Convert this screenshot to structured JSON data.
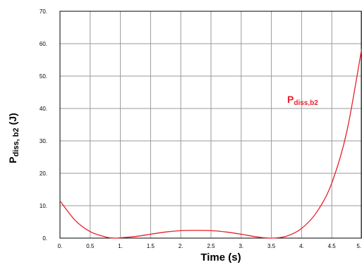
{
  "chart_data": {
    "type": "line",
    "title": "",
    "xlabel": "Time (s)",
    "ylabel": {
      "main": "P",
      "sub": "diss, b2",
      "unit": "(J)"
    },
    "xlim": [
      0,
      5
    ],
    "ylim": [
      0,
      70
    ],
    "x_ticks": [
      {
        "value": 0,
        "label": "0."
      },
      {
        "value": 0.5,
        "label": "0.5"
      },
      {
        "value": 1,
        "label": "1."
      },
      {
        "value": 1.5,
        "label": "1.5"
      },
      {
        "value": 2,
        "label": "2."
      },
      {
        "value": 2.5,
        "label": "2.5"
      },
      {
        "value": 3,
        "label": "3."
      },
      {
        "value": 3.5,
        "label": "3.5"
      },
      {
        "value": 4,
        "label": "4."
      },
      {
        "value": 4.5,
        "label": "4.5"
      },
      {
        "value": 5,
        "label": "5."
      }
    ],
    "y_ticks": [
      {
        "value": 0,
        "label": "0."
      },
      {
        "value": 10,
        "label": "10."
      },
      {
        "value": 20,
        "label": "20."
      },
      {
        "value": 30,
        "label": "30."
      },
      {
        "value": 40,
        "label": "40."
      },
      {
        "value": 50,
        "label": "50."
      },
      {
        "value": 60,
        "label": "60."
      },
      {
        "value": 70,
        "label": "70."
      }
    ],
    "grid": true,
    "series": [
      {
        "name": "P_diss,b2",
        "color": "#e8202a",
        "x": [
          0,
          0.25,
          0.5,
          0.75,
          0.9,
          1.0,
          1.25,
          1.5,
          1.75,
          2.0,
          2.25,
          2.5,
          2.75,
          3.0,
          3.25,
          3.5,
          3.75,
          4.0,
          4.25,
          4.5,
          4.75,
          5.0
        ],
        "y": [
          11.5,
          5.5,
          2.0,
          0.4,
          0.0,
          0.1,
          0.5,
          1.2,
          1.9,
          2.3,
          2.4,
          2.3,
          1.9,
          1.2,
          0.4,
          0.0,
          0.6,
          3.0,
          8.0,
          17.0,
          33.0,
          59.0
        ]
      }
    ],
    "annotation": {
      "main": "P",
      "sub": "diss,b2",
      "color": "#e8202a",
      "position": "right"
    }
  }
}
